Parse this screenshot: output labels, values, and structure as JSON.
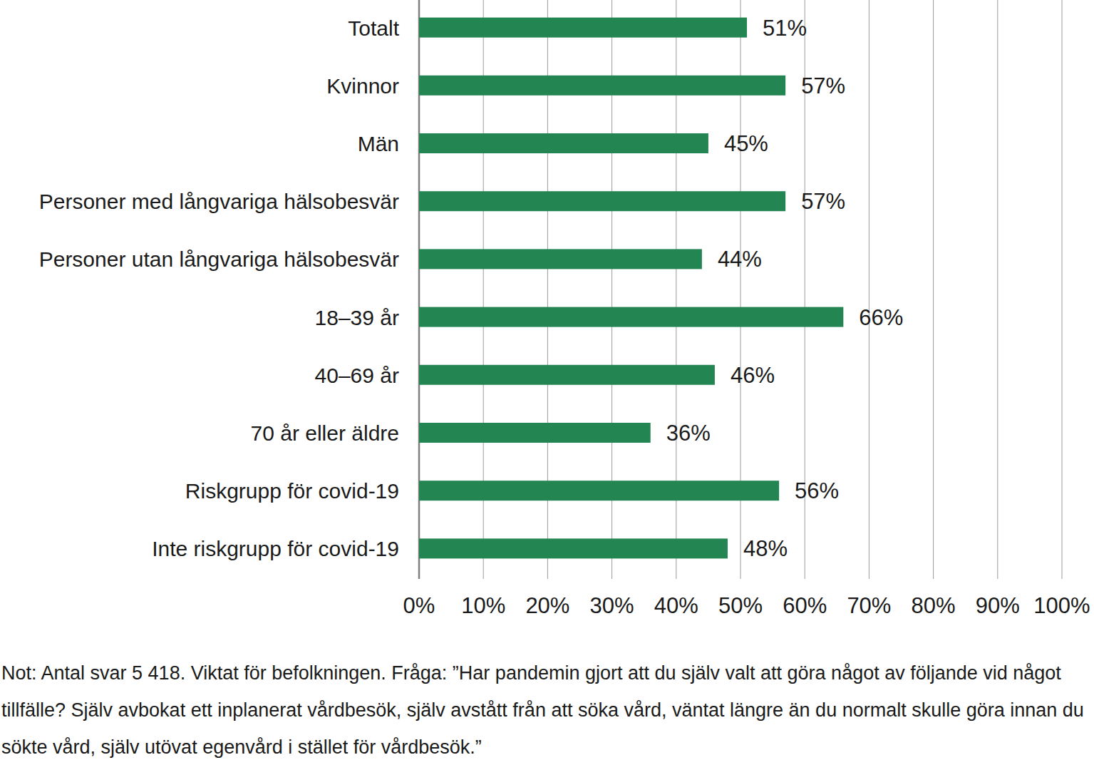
{
  "chart_data": {
    "type": "bar",
    "orientation": "horizontal",
    "categories": [
      "Totalt",
      "Kvinnor",
      "Män",
      "Personer med långvariga hälsobesvär",
      "Personer utan långvariga hälsobesvär",
      "18–39 år",
      "40–69 år",
      "70 år eller äldre",
      "Riskgrupp för covid-19",
      "Inte riskgrupp för covid-19"
    ],
    "values": [
      51,
      57,
      45,
      57,
      44,
      66,
      46,
      36,
      56,
      48
    ],
    "value_labels": [
      "51%",
      "57%",
      "45%",
      "57%",
      "44%",
      "66%",
      "46%",
      "36%",
      "56%",
      "48%"
    ],
    "color": "#238551",
    "xlim": [
      0,
      100
    ],
    "xticks": [
      {
        "value": 0,
        "label": "0%"
      },
      {
        "value": 10,
        "label": "10%"
      },
      {
        "value": 20,
        "label": "20%"
      },
      {
        "value": 30,
        "label": "30%"
      },
      {
        "value": 40,
        "label": "40%"
      },
      {
        "value": 50,
        "label": "50%"
      },
      {
        "value": 60,
        "label": "60%"
      },
      {
        "value": 70,
        "label": "70%"
      },
      {
        "value": 80,
        "label": "80%"
      },
      {
        "value": 90,
        "label": "90%"
      },
      {
        "value": 100,
        "label": "100%"
      }
    ],
    "grid": true,
    "data_labels": true,
    "annotations": [
      "Not: Antal svar 5 418. Viktat för befolkningen. Fråga: ”Har pandemin gjort att du själv valt att göra något av följande vid något tillfälle? Själv avbokat ett inplanerat vårdbesök, själv avstått från att söka vård, väntat längre än du normalt skulle göra innan du sökte vård, själv utövat egenvård i stället för vårdbesök.”"
    ]
  }
}
